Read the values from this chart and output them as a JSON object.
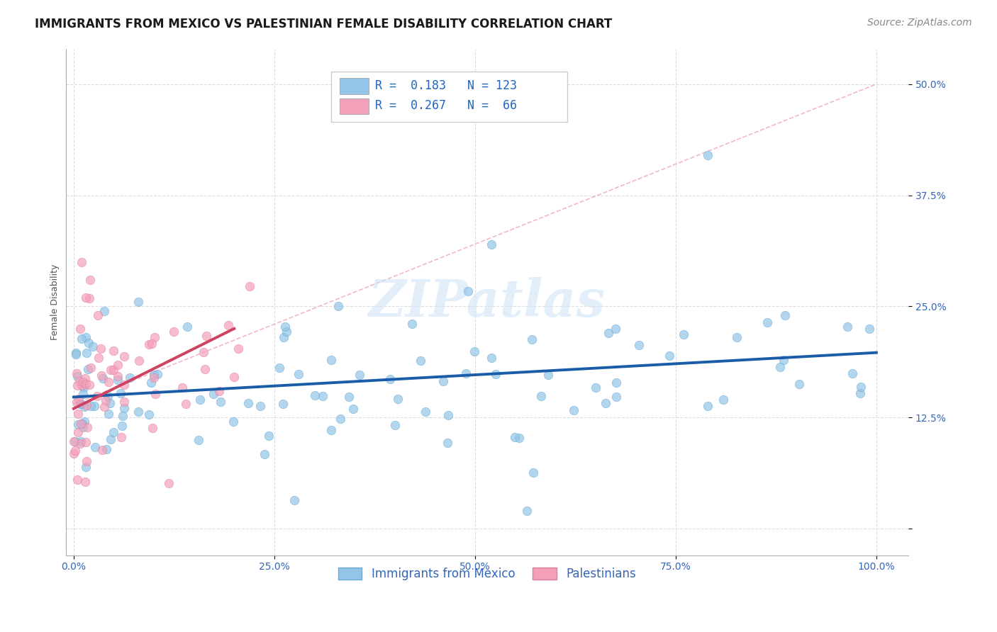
{
  "title": "IMMIGRANTS FROM MEXICO VS PALESTINIAN FEMALE DISABILITY CORRELATION CHART",
  "source": "Source: ZipAtlas.com",
  "ylabel": "Female Disability",
  "y_ticks": [
    0.0,
    12.5,
    25.0,
    37.5,
    50.0
  ],
  "y_tick_labels": [
    "",
    "12.5%",
    "25.0%",
    "37.5%",
    "50.0%"
  ],
  "x_ticks": [
    0.0,
    25.0,
    50.0,
    75.0,
    100.0
  ],
  "x_tick_labels": [
    "0.0%",
    "25.0%",
    "50.0%",
    "75.0%",
    "100.0%"
  ],
  "xlim": [
    -1,
    104
  ],
  "ylim": [
    -3,
    54
  ],
  "blue_R": 0.183,
  "blue_N": 123,
  "pink_R": 0.267,
  "pink_N": 66,
  "blue_color": "#92C5E8",
  "pink_color": "#F4A0B8",
  "blue_edge_color": "#6AAAD4",
  "pink_edge_color": "#E080A0",
  "blue_line_color": "#1A5CA8",
  "pink_line_color": "#D04060",
  "ref_line_color": "#F0B0C0",
  "watermark": "ZIPatlas",
  "legend_blue_label": "Immigrants from Mexico",
  "legend_pink_label": "Palestinians",
  "blue_line_x0": 0,
  "blue_line_x1": 100,
  "blue_line_y0": 14.8,
  "blue_line_y1": 19.8,
  "pink_line_x0": 0,
  "pink_line_x1": 20,
  "pink_line_y0": 13.5,
  "pink_line_y1": 22.5,
  "ref_line_x0": 0,
  "ref_line_x1": 100,
  "ref_line_y0": 14.0,
  "ref_line_y1": 50.0,
  "background_color": "#FFFFFF",
  "grid_color": "#DDDDDD",
  "title_fontsize": 12,
  "axis_label_fontsize": 9,
  "tick_fontsize": 10,
  "legend_fontsize": 12,
  "source_fontsize": 10
}
